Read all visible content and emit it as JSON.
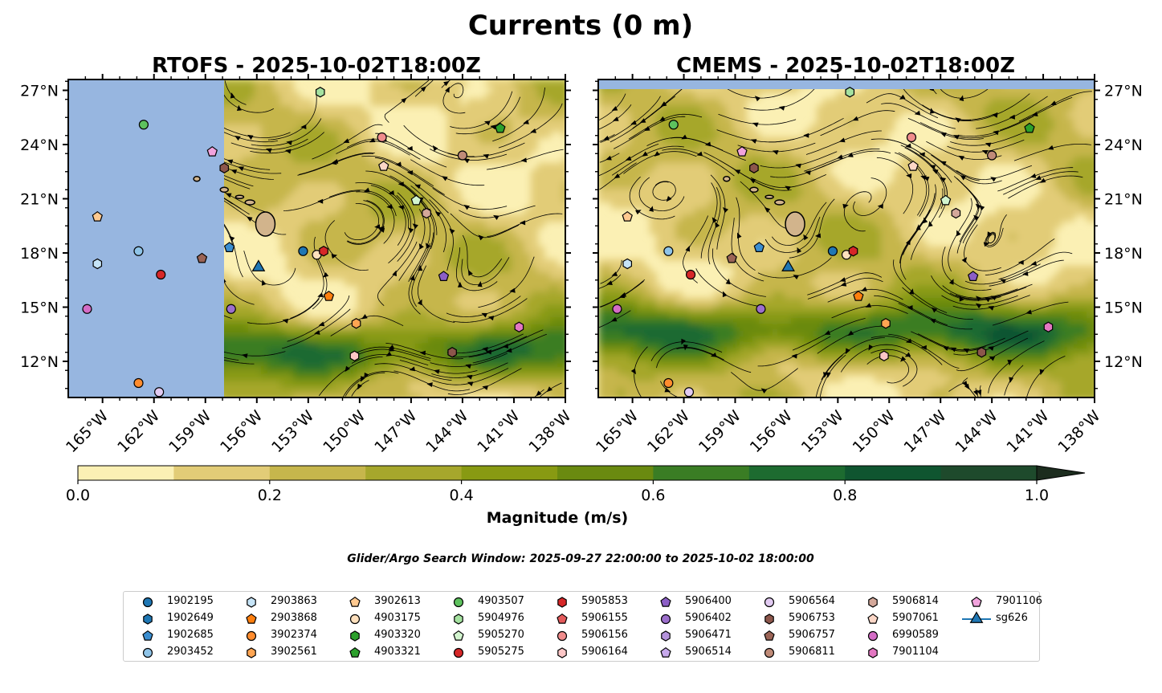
{
  "figure": {
    "suptitle": "Currents (0 m)",
    "subtitle": "Glider/Argo Search Window: 2025-09-27 22:00:00 to 2025-10-02 18:00:00"
  },
  "chart_data": [
    {
      "type": "map",
      "title": "RTOFS - 2025-10-02T18:00Z",
      "variable": "surface current magnitude with streamlines",
      "xlim": [
        -167,
        -138
      ],
      "ylim": [
        10,
        27.6
      ],
      "xticks": [
        -165,
        -162,
        -159,
        -156,
        -153,
        -150,
        -147,
        -144,
        -141,
        -138
      ],
      "yticks": [
        12,
        15,
        18,
        21,
        24,
        27
      ],
      "xtick_labels": [
        "165°W",
        "162°W",
        "159°W",
        "156°W",
        "153°W",
        "150°W",
        "147°W",
        "144°W",
        "141°W",
        "138°W"
      ],
      "ytick_labels": [
        "12°N",
        "15°N",
        "18°N",
        "21°N",
        "24°N",
        "27°N"
      ],
      "no_data_region": "west of 157.9°W",
      "markers": [
        {
          "id": "4903507",
          "lon": -162.6,
          "lat": 25.1
        },
        {
          "id": "5904976",
          "lon": -152.3,
          "lat": 26.9
        },
        {
          "id": "5906753",
          "lon": -157.9,
          "lat": 22.7
        },
        {
          "id": "7901106",
          "lon": -158.6,
          "lat": 23.6
        },
        {
          "id": "5906757",
          "lon": -159.2,
          "lat": 17.7
        },
        {
          "id": "3902613",
          "lon": -165.3,
          "lat": 20.0
        },
        {
          "id": "2903863",
          "lon": -165.3,
          "lat": 17.4
        },
        {
          "id": "2903452",
          "lon": -162.9,
          "lat": 18.1
        },
        {
          "id": "5905275",
          "lon": -161.6,
          "lat": 16.8
        },
        {
          "id": "6990589",
          "lon": -165.9,
          "lat": 14.9
        },
        {
          "id": "3902374",
          "lon": -162.9,
          "lat": 10.8
        },
        {
          "id": "5906564",
          "lon": -161.7,
          "lat": 10.3
        },
        {
          "id": "1902685",
          "lon": -157.6,
          "lat": 18.3
        },
        {
          "id": "sg626",
          "lon": -155.9,
          "lat": 17.2
        },
        {
          "id": "5906402",
          "lon": -157.5,
          "lat": 14.9
        },
        {
          "id": "1902195",
          "lon": -153.3,
          "lat": 18.1
        },
        {
          "id": "4903175",
          "lon": -152.5,
          "lat": 17.9
        },
        {
          "id": "5905853",
          "lon": -152.1,
          "lat": 18.1
        },
        {
          "id": "2903868",
          "lon": -151.8,
          "lat": 15.6
        },
        {
          "id": "3902561",
          "lon": -150.2,
          "lat": 14.1
        },
        {
          "id": "5906164",
          "lon": -150.3,
          "lat": 12.3
        },
        {
          "id": "5906156",
          "lon": -148.7,
          "lat": 24.4
        },
        {
          "id": "5907061",
          "lon": -148.6,
          "lat": 22.8
        },
        {
          "id": "5905270",
          "lon": -146.7,
          "lat": 20.9
        },
        {
          "id": "5906814",
          "lon": -146.1,
          "lat": 20.2
        },
        {
          "id": "5906400",
          "lon": -145.1,
          "lat": 16.7
        },
        {
          "id": "5906753b",
          "lon": -144.6,
          "lat": 12.5
        },
        {
          "id": "5906811",
          "lon": -144.0,
          "lat": 23.4
        },
        {
          "id": "4903321",
          "lon": -141.8,
          "lat": 24.9
        },
        {
          "id": "7901104",
          "lon": -140.7,
          "lat": 13.9
        }
      ]
    },
    {
      "type": "map",
      "title": "CMEMS - 2025-10-02T18:00Z",
      "variable": "surface current magnitude with streamlines",
      "xlim": [
        -167,
        -138
      ],
      "ylim": [
        10,
        27.6
      ],
      "xticks": [
        -165,
        -162,
        -159,
        -156,
        -153,
        -150,
        -147,
        -144,
        -141,
        -138
      ],
      "yticks": [
        12,
        15,
        18,
        21,
        24,
        27
      ],
      "xtick_labels": [
        "165°W",
        "162°W",
        "159°W",
        "156°W",
        "153°W",
        "150°W",
        "147°W",
        "144°W",
        "141°W",
        "138°W"
      ],
      "ytick_labels": [
        "12°N",
        "15°N",
        "18°N",
        "21°N",
        "24°N",
        "27°N"
      ],
      "no_data_region": "north of 27.1°N"
    }
  ],
  "colorbar": {
    "label": "Magnitude (m/s)",
    "ticks": [
      "0.0",
      "0.2",
      "0.4",
      "0.6",
      "0.8",
      "1.0"
    ],
    "levels": [
      0,
      0.1,
      0.2,
      0.3,
      0.4,
      0.5,
      0.6,
      0.7,
      0.8,
      0.9,
      1.0
    ],
    "colors": [
      "#fbf0b4",
      "#e2cc77",
      "#c6b64c",
      "#a6a72c",
      "#889a12",
      "#6a8a10",
      "#3a7d24",
      "#1d6b30",
      "#0f5530",
      "#1e4a2c",
      "#1c2c1e"
    ],
    "extend": "max"
  },
  "legend": {
    "items": [
      {
        "label": "1902195",
        "color": "#1f77b4",
        "shape": "circle"
      },
      {
        "label": "1902649",
        "color": "#1f77b4",
        "shape": "hexagon"
      },
      {
        "label": "1902685",
        "color": "#3b8ed0",
        "shape": "pentagon"
      },
      {
        "label": "2903452",
        "color": "#8fc4e8",
        "shape": "circle"
      },
      {
        "label": "2903863",
        "color": "#c6e4f7",
        "shape": "hexagon"
      },
      {
        "label": "2903868",
        "color": "#ff7f0e",
        "shape": "pentagon"
      },
      {
        "label": "3902374",
        "color": "#ff8c2e",
        "shape": "circle"
      },
      {
        "label": "3902561",
        "color": "#ffa552",
        "shape": "hexagon"
      },
      {
        "label": "3902613",
        "color": "#ffc990",
        "shape": "pentagon"
      },
      {
        "label": "4903175",
        "color": "#ffe0bd",
        "shape": "circle"
      },
      {
        "label": "4903320",
        "color": "#2ca02c",
        "shape": "hexagon"
      },
      {
        "label": "4903321",
        "color": "#2ca02c",
        "shape": "pentagon"
      },
      {
        "label": "4903507",
        "color": "#5ec25e",
        "shape": "circle"
      },
      {
        "label": "5904976",
        "color": "#a5e2a0",
        "shape": "hexagon"
      },
      {
        "label": "5905270",
        "color": "#d3f5cf",
        "shape": "pentagon"
      },
      {
        "label": "5905275",
        "color": "#d62728",
        "shape": "circle"
      },
      {
        "label": "5905853",
        "color": "#d62728",
        "shape": "hexagon"
      },
      {
        "label": "5906155",
        "color": "#e45a5b",
        "shape": "pentagon"
      },
      {
        "label": "5906156",
        "color": "#f08c8c",
        "shape": "circle"
      },
      {
        "label": "5906164",
        "color": "#fcc6c6",
        "shape": "hexagon"
      },
      {
        "label": "5906400",
        "color": "#8c5ec6",
        "shape": "pentagon"
      },
      {
        "label": "5906402",
        "color": "#9c6fcc",
        "shape": "circle"
      },
      {
        "label": "5906471",
        "color": "#b593dc",
        "shape": "hexagon"
      },
      {
        "label": "5906514",
        "color": "#c7a9ec",
        "shape": "pentagon"
      },
      {
        "label": "5906564",
        "color": "#e2cbf2",
        "shape": "circle"
      },
      {
        "label": "5906753",
        "color": "#8c564b",
        "shape": "hexagon"
      },
      {
        "label": "5906757",
        "color": "#9b6456",
        "shape": "pentagon"
      },
      {
        "label": "5906811",
        "color": "#c08b78",
        "shape": "circle"
      },
      {
        "label": "5906814",
        "color": "#d4a89a",
        "shape": "hexagon"
      },
      {
        "label": "5907061",
        "color": "#fcd7c7",
        "shape": "pentagon"
      },
      {
        "label": "6990589",
        "color": "#d46cc6",
        "shape": "circle"
      },
      {
        "label": "7901104",
        "color": "#e377c2",
        "shape": "hexagon"
      },
      {
        "label": "7901106",
        "color": "#f2a3dd",
        "shape": "pentagon"
      },
      {
        "label": "sg626",
        "color": "#1f77b4",
        "shape": "triangle"
      }
    ]
  }
}
